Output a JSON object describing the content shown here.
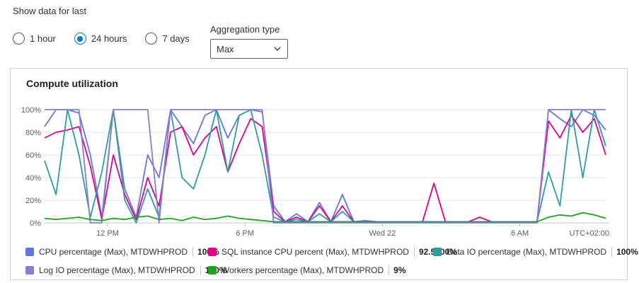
{
  "controls": {
    "show_data_label": "Show data for last",
    "time_ranges": [
      {
        "label": "1 hour",
        "selected": false
      },
      {
        "label": "24 hours",
        "selected": true
      },
      {
        "label": "7 days",
        "selected": false
      }
    ],
    "aggregation": {
      "label": "Aggregation type",
      "value": "Max"
    }
  },
  "card": {
    "title": "Compute utilization"
  },
  "colors": {
    "accent": "#0078d4",
    "grid": "#e6e6e6",
    "axis_text": "#605e5c",
    "card_border": "#d4d2d0"
  },
  "chart_data": {
    "type": "line",
    "title": "Compute utilization",
    "ylabel": "percent",
    "ylim": [
      0,
      100
    ],
    "y_ticks": [
      0,
      20,
      40,
      60,
      80,
      100
    ],
    "grid": true,
    "legend_position": "bottom",
    "timezone": "UTC+02:00",
    "x_unit": "hours from start (approx 9:15 AM Tue to 9:45 AM Wed)",
    "x_hours_max": 24.5,
    "x_ticks": [
      {
        "label": "12 PM",
        "t": 2.75
      },
      {
        "label": "6 PM",
        "t": 8.75
      },
      {
        "label": "Wed 22",
        "t": 14.75
      },
      {
        "label": "6 AM",
        "t": 20.75
      }
    ],
    "x": [
      0,
      0.5,
      1,
      1.5,
      2,
      2.5,
      3,
      3.5,
      4,
      4.5,
      5,
      5.5,
      6,
      6.5,
      7,
      7.5,
      8,
      8.5,
      9,
      9.5,
      10,
      10.5,
      11,
      11.5,
      12,
      12.5,
      13,
      13.5,
      14,
      14.5,
      15,
      15.5,
      16,
      16.5,
      17,
      17.5,
      18,
      18.5,
      19,
      19.5,
      20,
      20.5,
      21,
      21.5,
      22,
      22.5,
      23,
      23.5,
      24,
      24.5
    ],
    "series": [
      {
        "name": "CPU percentage (Max), MTDWHPROD",
        "metric": "CPU percentage",
        "aggregation": "Max",
        "resource": "MTDWHPROD",
        "legend_value": "100%",
        "color": "#6577dd",
        "values": [
          85,
          100,
          100,
          97,
          60,
          5,
          100,
          30,
          5,
          60,
          40,
          100,
          85,
          70,
          95,
          100,
          75,
          95,
          100,
          98,
          15,
          1,
          8,
          1,
          18,
          1,
          25,
          1,
          2,
          1,
          1,
          1,
          1,
          1,
          1,
          1,
          1,
          1,
          1,
          1,
          1,
          1,
          1,
          1,
          100,
          92,
          85,
          100,
          95,
          82
        ]
      },
      {
        "name": "SQL instance CPU percent (Max), MTDWHPROD",
        "metric": "SQL instance CPU percent",
        "aggregation": "Max",
        "resource": "MTDWHPROD",
        "legend_value": "92.5000%",
        "color": "#e3008c",
        "values": [
          75,
          80,
          82,
          85,
          50,
          3,
          60,
          25,
          3,
          40,
          15,
          80,
          85,
          60,
          75,
          85,
          45,
          70,
          92,
          85,
          10,
          1,
          5,
          1,
          15,
          1,
          15,
          1,
          1,
          1,
          1,
          1,
          1,
          1,
          35,
          1,
          1,
          1,
          5,
          1,
          1,
          1,
          1,
          1,
          90,
          75,
          95,
          80,
          92,
          60
        ]
      },
      {
        "name": "Data IO percentage (Max), MTDWHPROD",
        "metric": "Data IO percentage",
        "aggregation": "Max",
        "resource": "MTDWHPROD",
        "legend_value": "100%",
        "color": "#2f9ca1",
        "values": [
          55,
          25,
          100,
          60,
          5,
          45,
          100,
          20,
          0,
          30,
          5,
          100,
          40,
          30,
          60,
          100,
          45,
          95,
          100,
          60,
          5,
          1,
          3,
          1,
          8,
          1,
          10,
          1,
          1,
          1,
          1,
          1,
          1,
          1,
          1,
          1,
          1,
          1,
          1,
          1,
          1,
          1,
          1,
          1,
          45,
          15,
          100,
          40,
          100,
          68
        ]
      },
      {
        "name": "Log IO percentage (Max), MTDWHPROD",
        "metric": "Log IO percentage",
        "aggregation": "Max",
        "resource": "MTDWHPROD",
        "legend_value": "100%",
        "color": "#917bd1",
        "values": [
          100,
          100,
          100,
          100,
          0,
          0,
          100,
          100,
          100,
          100,
          0,
          100,
          100,
          100,
          100,
          100,
          100,
          100,
          100,
          100,
          0,
          0,
          0,
          0,
          0,
          0,
          0,
          0,
          0,
          0,
          0,
          0,
          0,
          0,
          0,
          0,
          0,
          0,
          0,
          0,
          0,
          0,
          0,
          0,
          100,
          100,
          100,
          100,
          100,
          100
        ]
      },
      {
        "name": "Workers percentage (Max), MTDWHPROD",
        "metric": "Workers percentage",
        "aggregation": "Max",
        "resource": "MTDWHPROD",
        "legend_value": "9%",
        "color": "#1ea51e",
        "values": [
          4,
          3,
          4,
          5,
          3,
          2,
          4,
          3,
          5,
          6,
          3,
          4,
          2,
          5,
          3,
          4,
          6,
          4,
          3,
          2,
          1,
          1,
          1,
          1,
          1,
          1,
          1,
          1,
          1,
          1,
          1,
          1,
          1,
          1,
          1,
          1,
          1,
          1,
          1,
          1,
          1,
          1,
          1,
          1,
          5,
          7,
          6,
          9,
          7,
          4
        ]
      }
    ]
  }
}
